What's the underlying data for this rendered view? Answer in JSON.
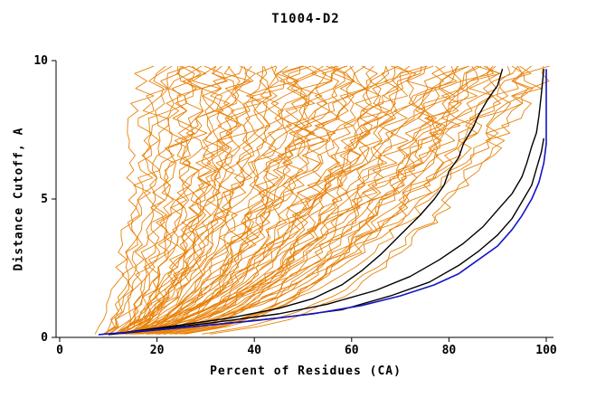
{
  "chart_data": {
    "type": "line",
    "title": "T1004-D2",
    "xlabel": "Percent of Residues (CA)",
    "ylabel": "Distance Cutoff, A",
    "xlim": [
      0,
      100
    ],
    "ylim": [
      0,
      10
    ],
    "x_ticks": [
      0,
      20,
      40,
      60,
      80,
      100
    ],
    "y_ticks": [
      0,
      5,
      10
    ],
    "grid": false,
    "legend": "none",
    "colors": {
      "ensemble": "#e8820a",
      "highlight": "#000000",
      "best": "#1414c8"
    },
    "ensemble_series": [
      [
        6,
        18,
        0.45
      ],
      [
        8,
        20,
        0.5
      ],
      [
        7,
        22,
        0.4
      ],
      [
        9,
        24,
        0.55
      ],
      [
        6,
        26,
        0.42
      ],
      [
        10,
        28,
        0.5
      ],
      [
        7,
        30,
        0.38
      ],
      [
        8,
        32,
        0.52
      ],
      [
        11,
        34,
        0.45
      ],
      [
        6,
        36,
        0.4
      ],
      [
        9,
        38,
        0.5
      ],
      [
        7,
        40,
        0.44
      ],
      [
        12,
        42,
        0.5
      ],
      [
        8,
        44,
        0.38
      ],
      [
        10,
        46,
        0.52
      ],
      [
        6,
        48,
        0.42
      ],
      [
        9,
        50,
        0.48
      ],
      [
        7,
        52,
        0.4
      ],
      [
        11,
        54,
        0.5
      ],
      [
        8,
        56,
        0.44
      ],
      [
        10,
        58,
        0.5
      ],
      [
        6,
        60,
        0.38
      ],
      [
        9,
        62,
        0.52
      ],
      [
        12,
        64,
        0.42
      ],
      [
        7,
        66,
        0.48
      ],
      [
        10,
        68,
        0.4
      ],
      [
        8,
        70,
        0.5
      ],
      [
        11,
        72,
        0.44
      ],
      [
        6,
        74,
        0.52
      ],
      [
        9,
        76,
        0.4
      ],
      [
        7,
        78,
        0.48
      ],
      [
        12,
        80,
        0.42
      ],
      [
        8,
        82,
        0.5
      ],
      [
        10,
        84,
        0.38
      ],
      [
        6,
        86,
        0.52
      ],
      [
        9,
        88,
        0.44
      ],
      [
        11,
        90,
        0.4
      ],
      [
        7,
        92,
        0.5
      ],
      [
        10,
        94,
        0.42
      ],
      [
        8,
        96,
        0.48
      ],
      [
        6,
        98,
        0.4
      ],
      [
        9,
        100,
        0.5
      ],
      [
        13,
        25,
        0.6
      ],
      [
        6,
        33,
        0.3
      ],
      [
        10,
        41,
        0.6
      ],
      [
        7,
        49,
        0.3
      ],
      [
        12,
        57,
        0.6
      ],
      [
        8,
        65,
        0.3
      ],
      [
        11,
        73,
        0.6
      ],
      [
        6,
        81,
        0.3
      ],
      [
        9,
        89,
        0.6
      ],
      [
        7,
        97,
        0.3
      ],
      [
        14,
        29,
        0.55
      ],
      [
        6,
        37,
        0.35
      ],
      [
        10,
        45,
        0.55
      ],
      [
        8,
        53,
        0.35
      ],
      [
        12,
        61,
        0.55
      ],
      [
        7,
        69,
        0.35
      ],
      [
        11,
        77,
        0.55
      ],
      [
        9,
        85,
        0.35
      ],
      [
        6,
        93,
        0.55
      ],
      [
        10,
        99,
        0.35
      ],
      [
        8,
        21,
        0.5
      ],
      [
        13,
        35,
        0.45
      ],
      [
        7,
        47,
        0.5
      ],
      [
        11,
        59,
        0.45
      ],
      [
        6,
        71,
        0.5
      ],
      [
        9,
        83,
        0.45
      ],
      [
        12,
        95,
        0.5
      ],
      [
        8,
        27,
        0.42
      ],
      [
        10,
        39,
        0.46
      ],
      [
        6,
        51,
        0.42
      ],
      [
        13,
        63,
        0.46
      ],
      [
        7,
        75,
        0.42
      ],
      [
        9,
        87,
        0.46
      ],
      [
        11,
        31,
        0.5
      ],
      [
        6,
        43,
        0.4
      ],
      [
        10,
        55,
        0.5
      ],
      [
        8,
        67,
        0.4
      ],
      [
        12,
        79,
        0.5
      ]
    ],
    "highlight_series": [
      {
        "points": [
          [
            14,
            0.2
          ],
          [
            25,
            0.45
          ],
          [
            35,
            0.7
          ],
          [
            45,
            1.05
          ],
          [
            52,
            1.4
          ],
          [
            58,
            1.9
          ],
          [
            62,
            2.4
          ],
          [
            66,
            3.0
          ],
          [
            70,
            3.7
          ],
          [
            74,
            4.4
          ],
          [
            77,
            5.0
          ],
          [
            79,
            5.5
          ],
          [
            80,
            6.0
          ],
          [
            82,
            6.5
          ],
          [
            83,
            7.0
          ],
          [
            85,
            7.6
          ],
          [
            86,
            8.0
          ],
          [
            88,
            8.6
          ],
          [
            90,
            9.1
          ],
          [
            91,
            9.7
          ]
        ]
      },
      {
        "points": [
          [
            12,
            0.15
          ],
          [
            30,
            0.5
          ],
          [
            45,
            0.85
          ],
          [
            55,
            1.2
          ],
          [
            65,
            1.7
          ],
          [
            72,
            2.2
          ],
          [
            78,
            2.8
          ],
          [
            83,
            3.4
          ],
          [
            87,
            4.0
          ],
          [
            90,
            4.6
          ],
          [
            93,
            5.2
          ],
          [
            95,
            5.8
          ],
          [
            96,
            6.3
          ],
          [
            97,
            6.9
          ],
          [
            98,
            7.4
          ],
          [
            98.5,
            8.0
          ],
          [
            99,
            8.8
          ],
          [
            99.5,
            9.7
          ]
        ]
      },
      {
        "points": [
          [
            10,
            0.1
          ],
          [
            28,
            0.4
          ],
          [
            45,
            0.7
          ],
          [
            58,
            1.0
          ],
          [
            68,
            1.5
          ],
          [
            76,
            2.0
          ],
          [
            82,
            2.6
          ],
          [
            86,
            3.1
          ],
          [
            90,
            3.7
          ],
          [
            93,
            4.3
          ],
          [
            95,
            4.9
          ],
          [
            97,
            5.5
          ],
          [
            98,
            6.1
          ],
          [
            99,
            6.7
          ],
          [
            99.5,
            7.2
          ]
        ]
      }
    ],
    "best_series": {
      "points": [
        [
          8,
          0.1
        ],
        [
          25,
          0.35
        ],
        [
          40,
          0.6
        ],
        [
          52,
          0.85
        ],
        [
          62,
          1.15
        ],
        [
          70,
          1.5
        ],
        [
          77,
          1.9
        ],
        [
          82,
          2.3
        ],
        [
          86,
          2.8
        ],
        [
          90,
          3.3
        ],
        [
          93,
          3.9
        ],
        [
          95,
          4.4
        ],
        [
          97,
          5.0
        ],
        [
          98.5,
          5.6
        ],
        [
          99.5,
          6.3
        ],
        [
          100,
          7.0
        ],
        [
          100,
          9.7
        ]
      ]
    }
  }
}
